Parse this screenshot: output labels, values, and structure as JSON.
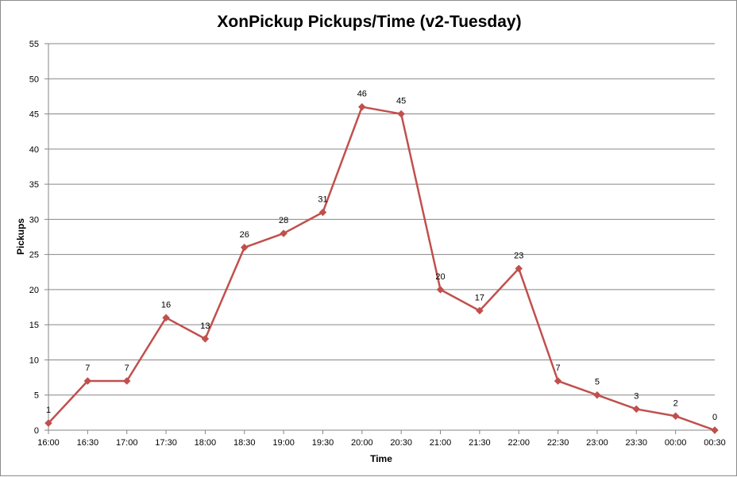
{
  "chart_data": {
    "type": "line",
    "title": "XonPickup Pickups/Time (v2-Tuesday)",
    "xlabel": "Time",
    "ylabel": "Pickups",
    "categories": [
      "16:00",
      "16:30",
      "17:00",
      "17:30",
      "18:00",
      "18:30",
      "19:00",
      "19:30",
      "20:00",
      "20:30",
      "21:00",
      "21:30",
      "22:00",
      "22:30",
      "23:00",
      "23:30",
      "00:00",
      "00:30"
    ],
    "series": [
      {
        "values": [
          1,
          7,
          7,
          16,
          13,
          26,
          28,
          31,
          46,
          45,
          20,
          17,
          23,
          7,
          5,
          3,
          2,
          0
        ]
      }
    ],
    "ylim": [
      0,
      55
    ],
    "yticks": [
      0,
      5,
      10,
      15,
      20,
      25,
      30,
      35,
      40,
      45,
      50,
      55
    ],
    "grid": true,
    "legend": "none",
    "data_labels": true,
    "marker": "diamond",
    "colors": {
      "line": "#c0504d",
      "grid": "#868686",
      "axis": "#868686"
    }
  }
}
